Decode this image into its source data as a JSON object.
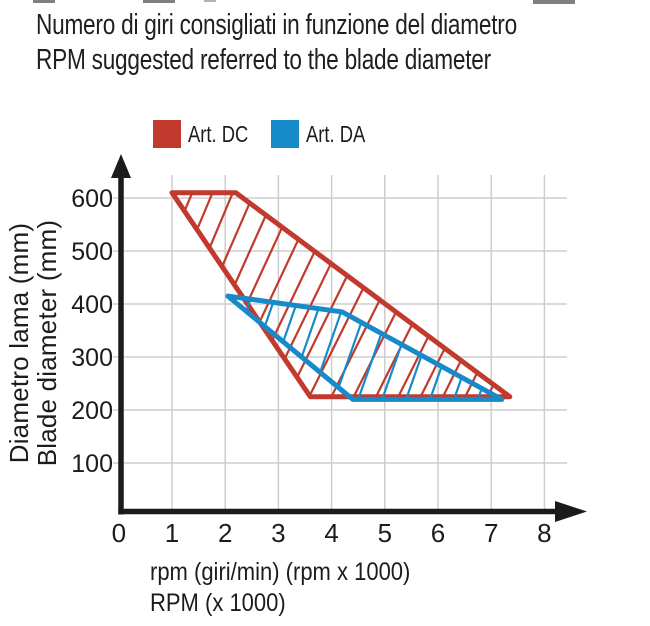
{
  "title": {
    "line1": "Numero di giri consigliati in funzione del diametro",
    "line2": "RPM suggested referred to the blade diameter"
  },
  "legend": [
    {
      "label": "Art. DC",
      "color": "#C2392D"
    },
    {
      "label": "Art. DA",
      "color": "#178AC9"
    }
  ],
  "axes": {
    "y_label_line1": "Diametro lama (mm)",
    "y_label_line2": "Blade diameter (mm)",
    "x_label_line1": "rpm (giri/min) (rpm x 1000)",
    "x_label_line2": "RPM (x 1000)"
  },
  "colors": {
    "red": "#C2392D",
    "blue": "#178AC9",
    "grid": "#CDCDCD",
    "axis": "#1B1B1B"
  },
  "chart_data": {
    "type": "area",
    "title": "Numero di giri consigliati in funzione del diametro / RPM suggested referred to the blade diameter",
    "xlabel": "rpm (giri/min) (rpm x 1000) / RPM (x 1000)",
    "ylabel": "Diametro lama (mm) / Blade diameter (mm)",
    "xlim": [
      0,
      8
    ],
    "ylim": [
      0,
      650
    ],
    "x_ticks": [
      0,
      1,
      2,
      3,
      4,
      5,
      6,
      7,
      8
    ],
    "y_ticks": [
      100,
      200,
      300,
      400,
      500,
      600
    ],
    "grid": true,
    "legend_position": "top",
    "series": [
      {
        "name": "Art. DC",
        "color": "#C2392D",
        "style": "hatched-band",
        "polygon": [
          [
            1.0,
            610
          ],
          [
            2.2,
            610
          ],
          [
            7.35,
            225
          ],
          [
            3.6,
            225
          ]
        ],
        "upper_boundary": [
          [
            1.0,
            610
          ],
          [
            2.2,
            610
          ],
          [
            7.35,
            225
          ]
        ],
        "lower_boundary": [
          [
            1.0,
            610
          ],
          [
            3.6,
            225
          ],
          [
            7.35,
            225
          ]
        ],
        "hatch_count": 20
      },
      {
        "name": "Art. DA",
        "color": "#178AC9",
        "style": "hatched-band",
        "polygon": [
          [
            2.05,
            415
          ],
          [
            4.2,
            385
          ],
          [
            7.2,
            220
          ],
          [
            4.4,
            220
          ]
        ],
        "upper_boundary": [
          [
            2.05,
            415
          ],
          [
            4.2,
            385
          ],
          [
            7.2,
            220
          ]
        ],
        "lower_boundary": [
          [
            2.05,
            415
          ],
          [
            4.4,
            220
          ],
          [
            7.2,
            220
          ]
        ],
        "hatch_count": 13
      }
    ]
  }
}
